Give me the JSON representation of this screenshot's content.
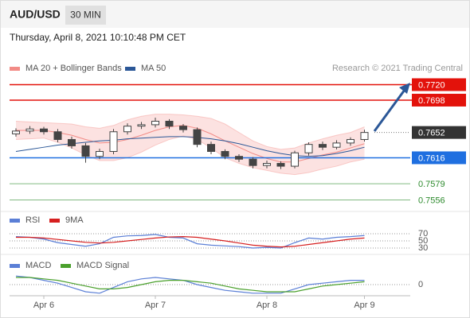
{
  "header": {
    "symbol": "AUD/USD",
    "timeframe": "30 MIN",
    "datetime": "Thursday, April 8, 2021 10:10:48 PM CET",
    "watermark": "Research © 2021 Trading Central"
  },
  "chart_data": [
    {
      "type": "candlestick",
      "categories": [
        null,
        null,
        "Apr 6",
        null,
        null,
        null,
        null,
        null,
        null,
        null,
        "Apr 7",
        null,
        null,
        null,
        null,
        null,
        null,
        null,
        "Apr 8",
        null,
        null,
        null,
        null,
        null,
        null,
        "Apr 9"
      ],
      "open": [
        0.765,
        0.7654,
        0.7657,
        0.7653,
        0.7642,
        0.7633,
        0.7618,
        0.7625,
        0.7653,
        0.7661,
        0.7663,
        0.7668,
        0.7661,
        0.7656,
        0.7635,
        0.7625,
        0.7618,
        0.7614,
        0.7605,
        0.7608,
        0.7604,
        0.7623,
        0.7635,
        0.7631,
        0.7637,
        0.7642
      ],
      "high": [
        0.7658,
        0.7661,
        0.766,
        0.7657,
        0.7646,
        0.7637,
        0.7629,
        0.7657,
        0.7665,
        0.7667,
        0.7673,
        0.7671,
        0.7664,
        0.7659,
        0.7639,
        0.7628,
        0.7621,
        0.7617,
        0.7612,
        0.7611,
        0.7626,
        0.7638,
        0.7639,
        0.7641,
        0.7645,
        0.7656
      ],
      "low": [
        0.7646,
        0.765,
        0.7649,
        0.7638,
        0.7629,
        0.7609,
        0.7614,
        0.7621,
        0.7649,
        0.7657,
        0.7659,
        0.7657,
        0.7652,
        0.7631,
        0.7621,
        0.7614,
        0.761,
        0.7601,
        0.7601,
        0.76,
        0.7601,
        0.7619,
        0.7627,
        0.7628,
        0.7633,
        0.7639
      ],
      "close": [
        0.7654,
        0.7657,
        0.7653,
        0.7642,
        0.7633,
        0.7618,
        0.7625,
        0.7653,
        0.7661,
        0.7663,
        0.7668,
        0.7661,
        0.7656,
        0.7635,
        0.7625,
        0.7618,
        0.7614,
        0.7605,
        0.7608,
        0.7604,
        0.7623,
        0.7635,
        0.7631,
        0.7637,
        0.7642,
        0.7652
      ],
      "up_color": "#ffffff",
      "down_color": "#444444",
      "series": [
        {
          "name": "MA 20 + Bollinger Bands",
          "color": "#f28b86",
          "values": [
            0.7655,
            0.7655,
            0.7655,
            0.7652,
            0.7648,
            0.7642,
            0.7637,
            0.7638,
            0.7642,
            0.7648,
            0.7655,
            0.766,
            0.7662,
            0.7658,
            0.765,
            0.764,
            0.7631,
            0.7622,
            0.7615,
            0.761,
            0.761,
            0.7615,
            0.762,
            0.7624,
            0.763,
            0.7636
          ],
          "upper": [
            0.7668,
            0.7667,
            0.7666,
            0.7665,
            0.7664,
            0.766,
            0.7658,
            0.7662,
            0.767,
            0.7675,
            0.7678,
            0.7678,
            0.7677,
            0.7675,
            0.7672,
            0.7664,
            0.7652,
            0.764,
            0.7632,
            0.7628,
            0.763,
            0.7637,
            0.7643,
            0.7648,
            0.7652,
            0.766
          ],
          "lower": [
            0.7642,
            0.7643,
            0.7644,
            0.7638,
            0.763,
            0.762,
            0.7612,
            0.7612,
            0.7616,
            0.7624,
            0.7634,
            0.7642,
            0.7647,
            0.7642,
            0.763,
            0.7616,
            0.7608,
            0.7602,
            0.7598,
            0.7594,
            0.7592,
            0.7595,
            0.76,
            0.7604,
            0.761,
            0.7614
          ]
        },
        {
          "name": "MA 50",
          "color": "#2b5797",
          "values": [
            0.7625,
            0.7628,
            0.7631,
            0.7634,
            0.7636,
            0.7638,
            0.764,
            0.7641,
            0.7643,
            0.7644,
            0.7645,
            0.7646,
            0.7646,
            0.7645,
            0.7643,
            0.764,
            0.7636,
            0.7631,
            0.7626,
            0.7622,
            0.7619,
            0.7618,
            0.7619,
            0.7622,
            0.7626,
            0.7631
          ]
        }
      ],
      "ylim": [
        0.7543,
        0.7733
      ],
      "current": {
        "value": 0.7652,
        "label": "0.7652",
        "color": "#333333"
      },
      "levels": [
        {
          "value": 0.772,
          "label": "0.7720",
          "color": "#e3120b",
          "boxed": true
        },
        {
          "value": 0.7698,
          "label": "0.7698",
          "color": "#e3120b",
          "boxed": true
        },
        {
          "value": 0.7616,
          "label": "0.7616",
          "color": "#1f6fe0",
          "boxed": true
        },
        {
          "value": 0.7579,
          "label": "0.7579",
          "color": "#2e8b2e",
          "boxed": false
        },
        {
          "value": 0.7556,
          "label": "0.7556",
          "color": "#2e8b2e",
          "boxed": false
        }
      ]
    },
    {
      "type": "line",
      "series": [
        {
          "name": "RSI",
          "color": "#5b7fd6",
          "values": [
            62,
            60,
            55,
            45,
            40,
            35,
            42,
            60,
            64,
            65,
            68,
            60,
            58,
            42,
            38,
            36,
            34,
            30,
            32,
            30,
            45,
            58,
            55,
            60,
            62,
            65
          ]
        },
        {
          "name": "9MA",
          "color": "#d62020",
          "values": [
            60,
            60,
            58,
            54,
            50,
            46,
            44,
            46,
            50,
            54,
            58,
            61,
            62,
            60,
            55,
            50,
            44,
            38,
            35,
            33,
            35,
            40,
            45,
            50,
            55,
            58
          ]
        }
      ],
      "ylim": [
        10,
        90
      ],
      "yticks": [
        70,
        50,
        30
      ]
    },
    {
      "type": "line",
      "series": [
        {
          "name": "MACD",
          "color": "#5b7fd6",
          "values": [
            0.0006,
            0.0005,
            0.0003,
            0.0001,
            -0.0002,
            -0.0005,
            -0.0006,
            -0.0002,
            0.0002,
            0.0004,
            0.0005,
            0.0004,
            0.0003,
            0.0,
            -0.0002,
            -0.0004,
            -0.0005,
            -0.0006,
            -0.0006,
            -0.0006,
            -0.0003,
            0.0,
            0.0001,
            0.0002,
            0.0003,
            0.0003
          ]
        },
        {
          "name": "MACD Signal",
          "color": "#4aa02c",
          "values": [
            0.0005,
            0.0005,
            0.0004,
            0.0003,
            0.0001,
            -0.0001,
            -0.0003,
            -0.0003,
            -0.0002,
            0.0,
            0.0002,
            0.0003,
            0.0003,
            0.0002,
            0.0001,
            -0.0001,
            -0.0003,
            -0.0004,
            -0.0005,
            -0.0005,
            -0.0005,
            -0.0003,
            -0.0001,
            0.0,
            0.0001,
            0.0002
          ]
        }
      ],
      "ylim": [
        -0.001,
        0.001
      ],
      "yticks": [
        0
      ]
    }
  ]
}
